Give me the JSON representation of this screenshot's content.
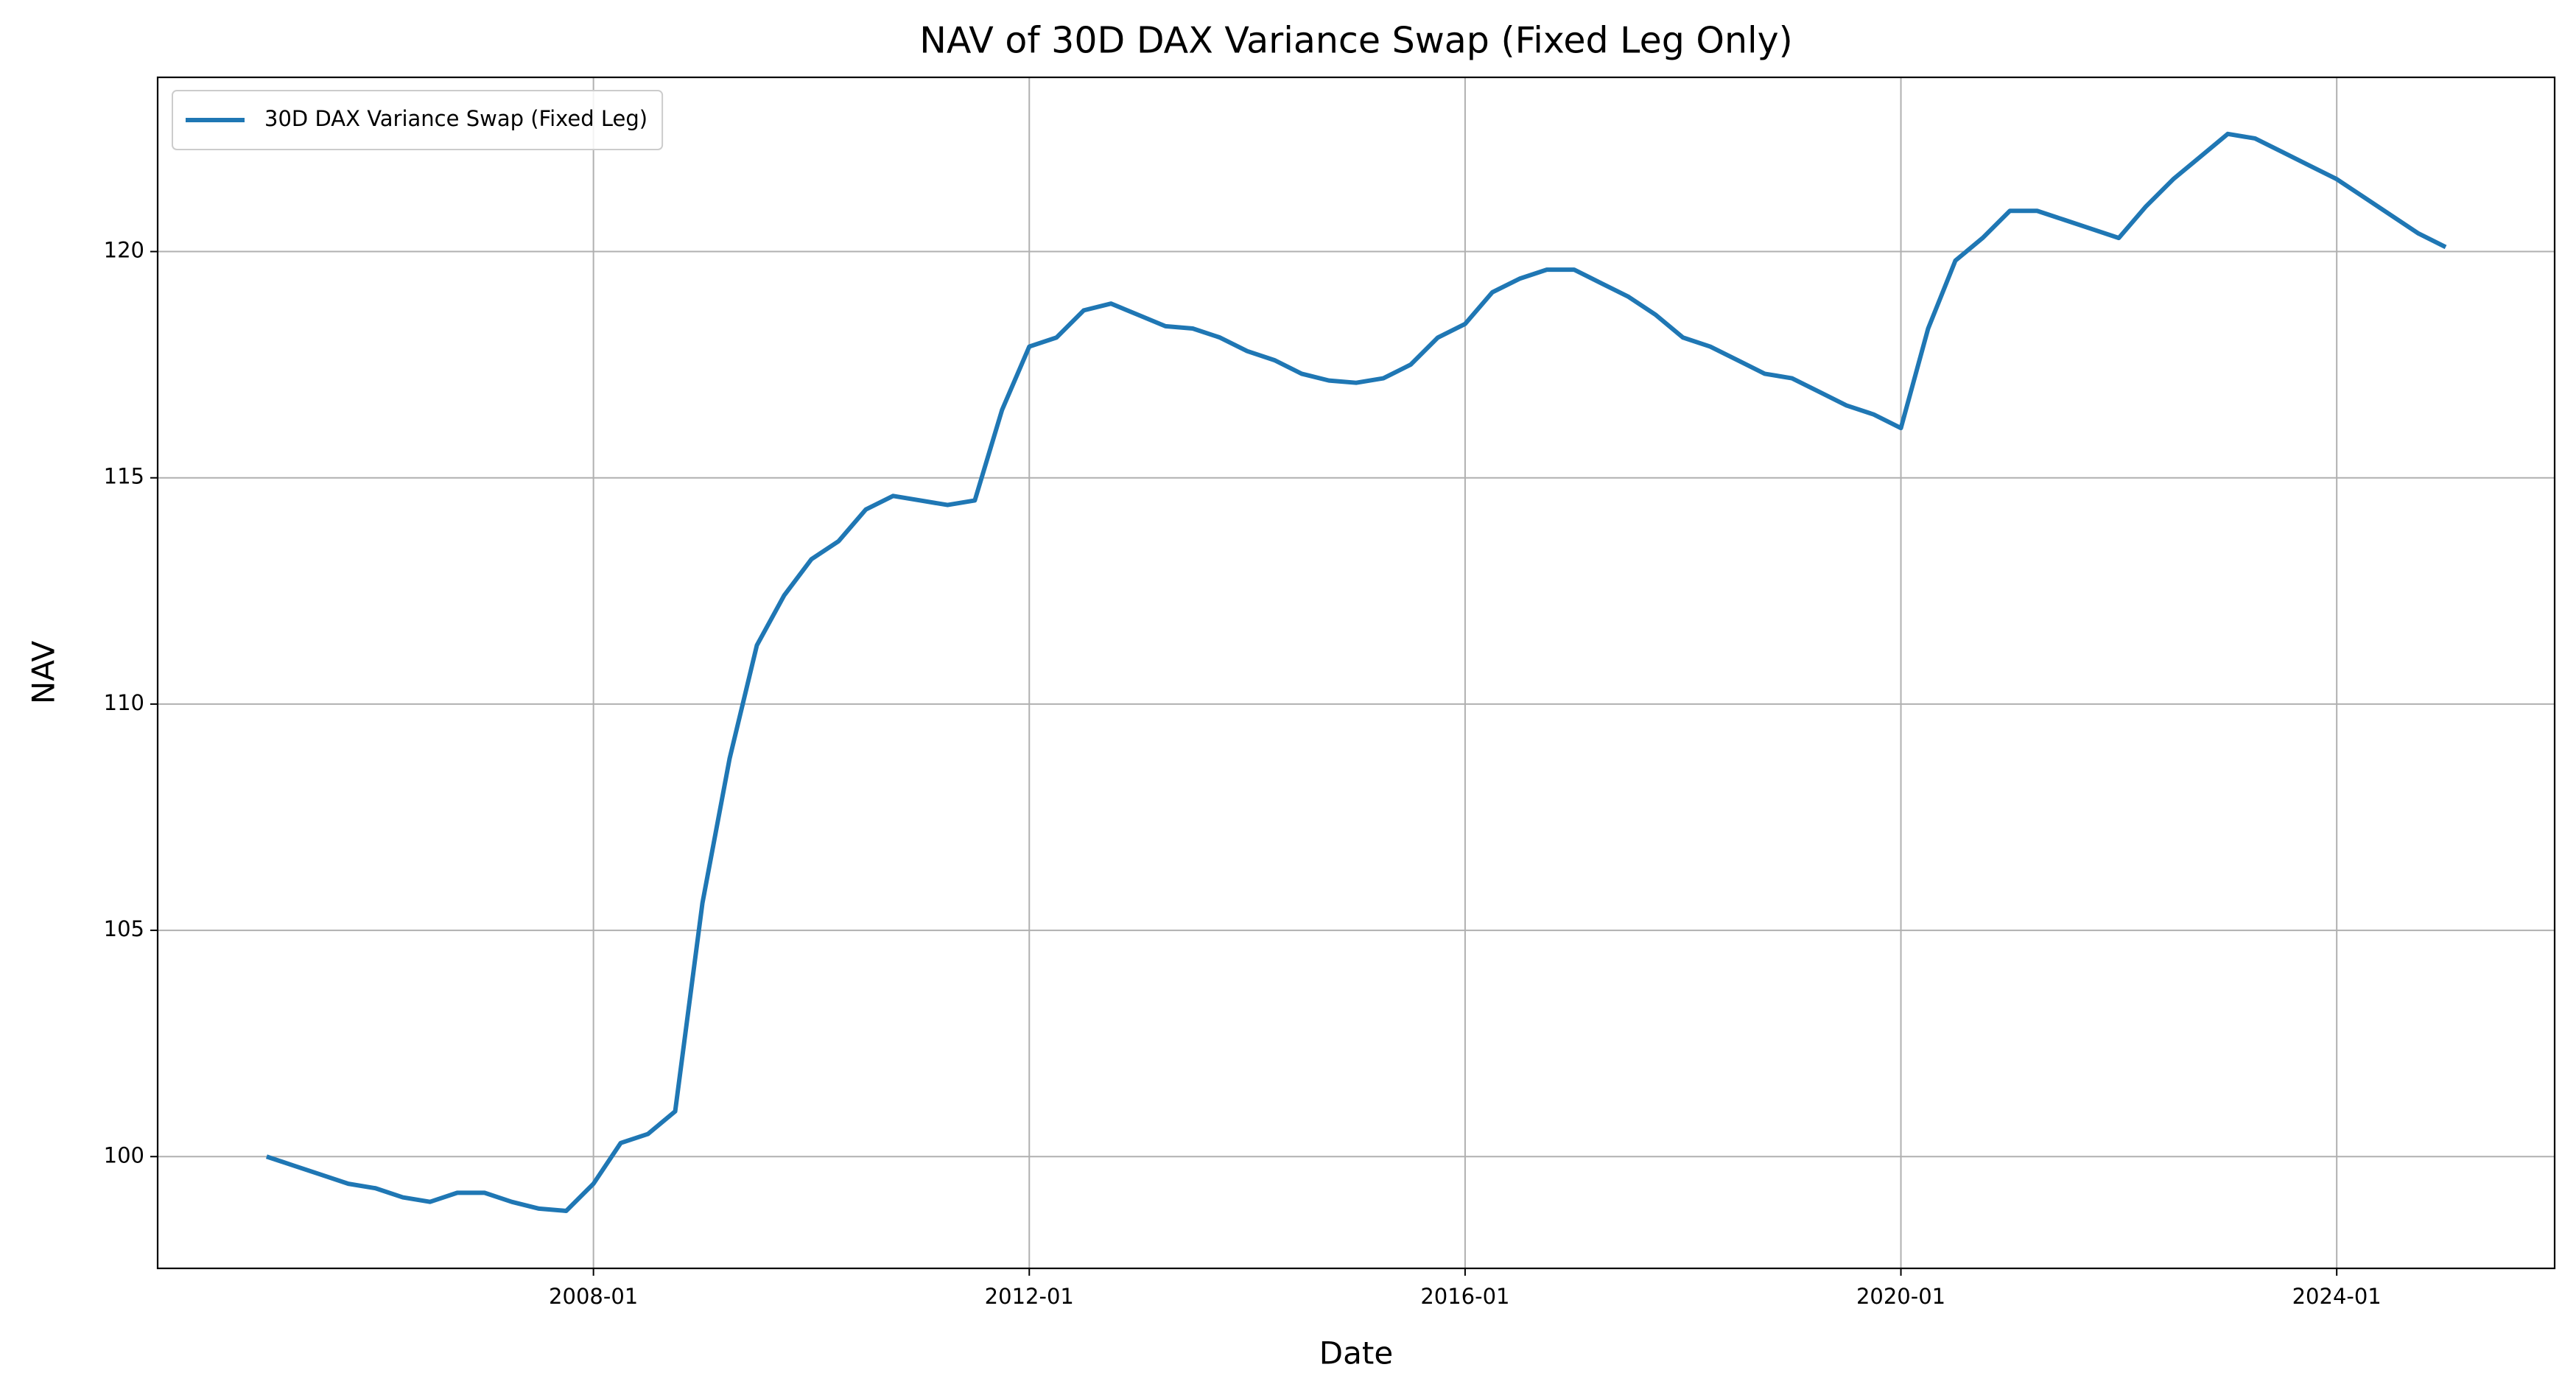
{
  "chart_data": {
    "type": "line",
    "title": "NAV of 30D DAX Variance Swap (Fixed Leg Only)",
    "x_label": "Date",
    "y_label": "NAV",
    "x": [
      "2005-01",
      "2005-04",
      "2005-07",
      "2005-10",
      "2006-01",
      "2006-04",
      "2006-07",
      "2006-10",
      "2007-01",
      "2007-04",
      "2007-07",
      "2007-10",
      "2008-01",
      "2008-04",
      "2008-07",
      "2008-10",
      "2009-01",
      "2009-04",
      "2009-07",
      "2009-10",
      "2010-01",
      "2010-04",
      "2010-07",
      "2010-10",
      "2011-01",
      "2011-04",
      "2011-07",
      "2011-10",
      "2012-01",
      "2012-04",
      "2012-07",
      "2012-10",
      "2013-01",
      "2013-04",
      "2013-07",
      "2013-10",
      "2014-01",
      "2014-04",
      "2014-07",
      "2014-10",
      "2015-01",
      "2015-04",
      "2015-07",
      "2015-10",
      "2016-01",
      "2016-04",
      "2016-07",
      "2016-10",
      "2017-01",
      "2017-04",
      "2017-07",
      "2017-10",
      "2018-01",
      "2018-04",
      "2018-07",
      "2018-10",
      "2019-01",
      "2019-04",
      "2019-07",
      "2019-10",
      "2020-01",
      "2020-04",
      "2020-07",
      "2020-10",
      "2021-01",
      "2021-04",
      "2021-07",
      "2021-10",
      "2022-01",
      "2022-04",
      "2022-07",
      "2022-10",
      "2023-01",
      "2023-04",
      "2023-07",
      "2023-10",
      "2024-01",
      "2024-04",
      "2024-07",
      "2024-10",
      "2025-01"
    ],
    "series": [
      {
        "name": "30D DAX Variance Swap (Fixed Leg)",
        "color": "#1f77b4",
        "values": [
          100.0,
          99.8,
          99.6,
          99.4,
          99.3,
          99.1,
          99.0,
          99.2,
          99.2,
          99.0,
          98.85,
          98.8,
          99.4,
          100.3,
          100.5,
          101.0,
          105.6,
          108.8,
          111.3,
          112.4,
          113.2,
          113.6,
          114.3,
          114.6,
          114.5,
          114.4,
          114.5,
          116.5,
          117.9,
          118.1,
          118.7,
          118.85,
          118.6,
          118.35,
          118.3,
          118.1,
          117.8,
          117.6,
          117.3,
          117.15,
          117.1,
          117.2,
          117.5,
          118.1,
          118.4,
          119.1,
          119.4,
          119.6,
          119.6,
          119.3,
          119.0,
          118.6,
          118.1,
          117.9,
          117.6,
          117.3,
          117.2,
          116.9,
          116.6,
          116.4,
          116.1,
          118.3,
          119.8,
          120.3,
          120.9,
          120.9,
          120.7,
          120.5,
          120.3,
          121.0,
          121.6,
          122.1,
          122.6,
          122.5,
          122.2,
          121.9,
          121.6,
          121.2,
          120.8,
          120.4,
          120.1
        ]
      }
    ],
    "xlim": [
      "2004-01",
      "2026-01"
    ],
    "xticks": [
      "2008-01",
      "2012-01",
      "2016-01",
      "2020-01",
      "2024-01"
    ],
    "ylim": [
      97.53,
      123.85
    ],
    "yticks": [
      100,
      105,
      110,
      115,
      120
    ],
    "grid": true,
    "legend": "upper left"
  }
}
